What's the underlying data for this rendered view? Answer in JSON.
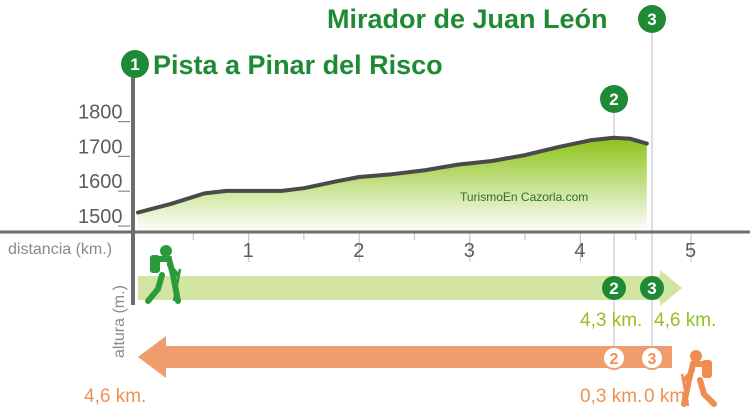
{
  "chart_data": {
    "type": "area",
    "title_start": "Pista a Pinar del Risco",
    "title_end": "Mirador de Juan León",
    "start_badge": "1",
    "end_badge": "3",
    "mid_badge": "2",
    "xlabel": "distancia (km.)",
    "ylabel": "altura (m.)",
    "x_ticks": [
      "1",
      "2",
      "3",
      "4",
      "5"
    ],
    "y_ticks": [
      "1800",
      "1700",
      "1600",
      "1500"
    ],
    "xlim": [
      0,
      5
    ],
    "ylim": [
      1500,
      1800
    ],
    "x": [
      0,
      0.3,
      0.6,
      0.8,
      1.0,
      1.3,
      1.5,
      1.8,
      2.0,
      2.3,
      2.6,
      2.9,
      3.2,
      3.5,
      3.8,
      4.1,
      4.3,
      4.45,
      4.6
    ],
    "y": [
      1510,
      1535,
      1565,
      1572,
      1572,
      1572,
      1580,
      1600,
      1612,
      1620,
      1632,
      1648,
      1658,
      1675,
      1698,
      1718,
      1725,
      1722,
      1708
    ],
    "watermark": "TurismoEn Cazorla.com",
    "outbound": {
      "markers": [
        "2",
        "3"
      ],
      "distances": [
        "4,3 km.",
        "4,6 km."
      ],
      "color": "#93c01f"
    },
    "return": {
      "markers": [
        "2",
        "3"
      ],
      "distances": [
        "4,6 km.",
        "0,3 km.",
        "0 km."
      ],
      "color": "#ef9155"
    },
    "colors": {
      "title": "#1f8a36",
      "area_top": "#8cc218",
      "area_bottom": "#ffffff",
      "profile_line": "#4a4a4a",
      "axis": "#6e6e6e",
      "grid": "#c8c8c8",
      "outbound_arrow": "#d3e5a3",
      "return_arrow": "#ef9d6d",
      "hiker_green": "#2b9a3a",
      "hiker_orange": "#f08c50"
    }
  }
}
